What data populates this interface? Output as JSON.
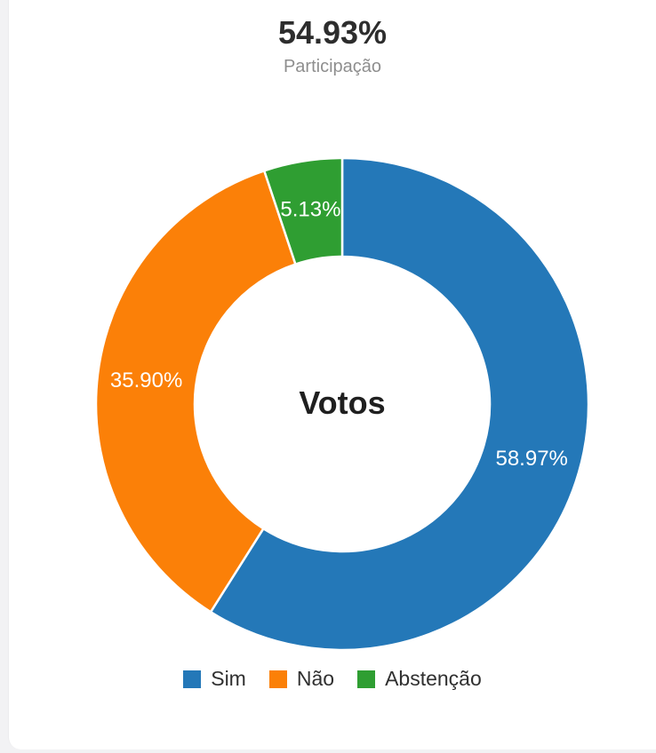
{
  "page": {
    "background_color": "#f2f2f4",
    "card_background": "#ffffff"
  },
  "header": {
    "participation_value": "54.93%",
    "participation_label": "Participação"
  },
  "chart_data": {
    "type": "pie",
    "subtype": "donut",
    "center_label": "Votos",
    "categories": [
      "Sim",
      "Não",
      "Abstenção"
    ],
    "values": [
      58.97,
      35.9,
      5.13
    ],
    "labels": [
      "58.97%",
      "35.90%",
      "5.13%"
    ],
    "colors": [
      "#2478b8",
      "#fb8008",
      "#2f9e32"
    ],
    "label_color": "#ffffff",
    "slice_border_color": "#ffffff",
    "start_angle_deg": -90,
    "direction": "clockwise",
    "legend_position": "bottom"
  },
  "legend": {
    "items": [
      {
        "label": "Sim",
        "color": "#2478b8"
      },
      {
        "label": "Não",
        "color": "#fb8008"
      },
      {
        "label": "Abstenção",
        "color": "#2f9e32"
      }
    ]
  }
}
